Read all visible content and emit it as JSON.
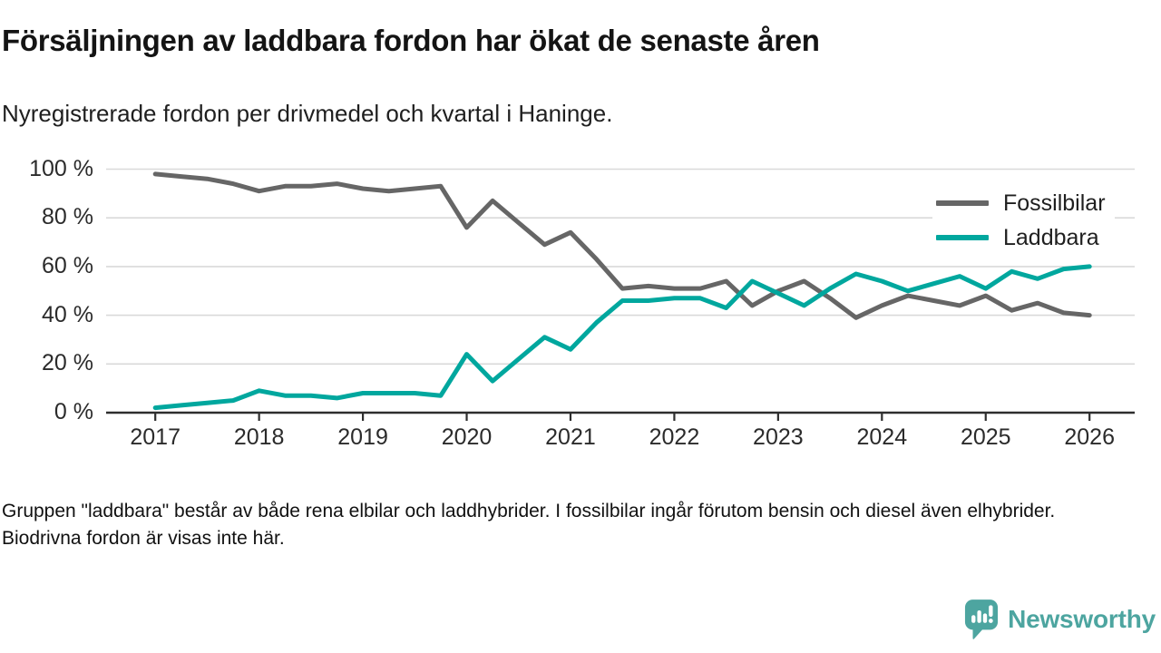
{
  "title": "Försäljningen av laddbara fordon har ökat de senaste åren",
  "subtitle": "Nyregistrerade fordon per drivmedel och kvartal i Haninge.",
  "footnote": "Gruppen \"laddbara\" består av både rena elbilar och laddhybrider. I fossilbilar ingår förutom bensin och diesel även elhybrider. Biodrivna fordon är visas inte här.",
  "legend": [
    {
      "label": "Fossilbilar",
      "color": "#666666"
    },
    {
      "label": "Laddbara",
      "color": "#00a79e"
    }
  ],
  "logo": {
    "text": "Newsworthy",
    "color": "#4da5a0",
    "icon": "newsworthy-speech-bubble-bar-chart-icon"
  },
  "colors": {
    "fossil_line": "#666666",
    "laddbara_line": "#00a79e",
    "gridline": "#d9d9d9",
    "axis_line": "#2e2e2e",
    "text": "#1a1a1a"
  },
  "chart_data": {
    "type": "line",
    "title": "Nyregistrerade fordon per drivmedel och kvartal i Haninge",
    "x_unit": "quarter",
    "grid": true,
    "legend_position": "top-right",
    "ylim": [
      0,
      100
    ],
    "y_ticks": [
      0,
      20,
      40,
      60,
      80,
      100
    ],
    "y_tick_labels": [
      "0 %",
      "20 %",
      "40 %",
      "60 %",
      "80 %",
      "100 %"
    ],
    "x_tick_labels": [
      "2017",
      "2018",
      "2019",
      "2020",
      "2021",
      "2022",
      "2023",
      "2024",
      "2025",
      "2026"
    ],
    "x": [
      "2017-Q1",
      "2017-Q2",
      "2017-Q3",
      "2017-Q4",
      "2018-Q1",
      "2018-Q2",
      "2018-Q3",
      "2018-Q4",
      "2019-Q1",
      "2019-Q2",
      "2019-Q3",
      "2019-Q4",
      "2020-Q1",
      "2020-Q2",
      "2020-Q3",
      "2020-Q4",
      "2021-Q1",
      "2021-Q2",
      "2021-Q3",
      "2021-Q4",
      "2022-Q1",
      "2022-Q2",
      "2022-Q3",
      "2022-Q4",
      "2023-Q1",
      "2023-Q2",
      "2023-Q3",
      "2023-Q4",
      "2024-Q1",
      "2024-Q2",
      "2024-Q3",
      "2024-Q4",
      "2025-Q1",
      "2025-Q2",
      "2025-Q3",
      "2025-Q4",
      "2026-Q1"
    ],
    "series": [
      {
        "name": "Fossilbilar",
        "color": "#666666",
        "values": [
          98,
          97,
          96,
          94,
          91,
          93,
          93,
          94,
          92,
          91,
          92,
          93,
          76,
          87,
          78,
          69,
          74,
          63,
          51,
          52,
          51,
          51,
          54,
          44,
          50,
          54,
          47,
          39,
          44,
          48,
          46,
          44,
          48,
          42,
          45,
          41,
          40
        ]
      },
      {
        "name": "Laddbara",
        "color": "#00a79e",
        "values": [
          2,
          3,
          4,
          5,
          9,
          7,
          7,
          6,
          8,
          8,
          8,
          7,
          24,
          13,
          22,
          31,
          26,
          37,
          46,
          46,
          47,
          47,
          43,
          54,
          49,
          44,
          51,
          57,
          54,
          50,
          53,
          56,
          51,
          58,
          55,
          59,
          60
        ]
      }
    ]
  }
}
